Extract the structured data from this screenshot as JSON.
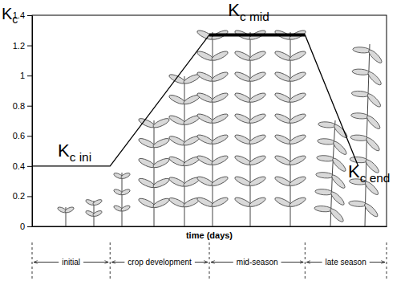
{
  "chart_data": {
    "type": "line",
    "y_label": {
      "text": "K",
      "sub": "c"
    },
    "x_label": "time (days)",
    "x": [
      0,
      22,
      50,
      77,
      92
    ],
    "values": [
      0.4,
      0.4,
      1.27,
      1.27,
      0.4
    ],
    "color": "#000000",
    "xlim": [
      0,
      100
    ],
    "ylim": [
      0,
      1.4
    ],
    "yticks": [
      0,
      0.2,
      0.4,
      0.6,
      0.8,
      1,
      1.2,
      1.4
    ],
    "tick_labels": "y",
    "grid": false,
    "annotations": [
      {
        "text": "K",
        "sub": "c ini"
      },
      {
        "text": "K",
        "sub": "c mid"
      },
      {
        "text": "K",
        "sub": "c end"
      }
    ],
    "stages": {
      "labels": [
        "initial",
        "crop development",
        "mid-season",
        "late season"
      ],
      "boundaries": [
        0,
        22,
        50,
        77,
        100
      ]
    }
  }
}
